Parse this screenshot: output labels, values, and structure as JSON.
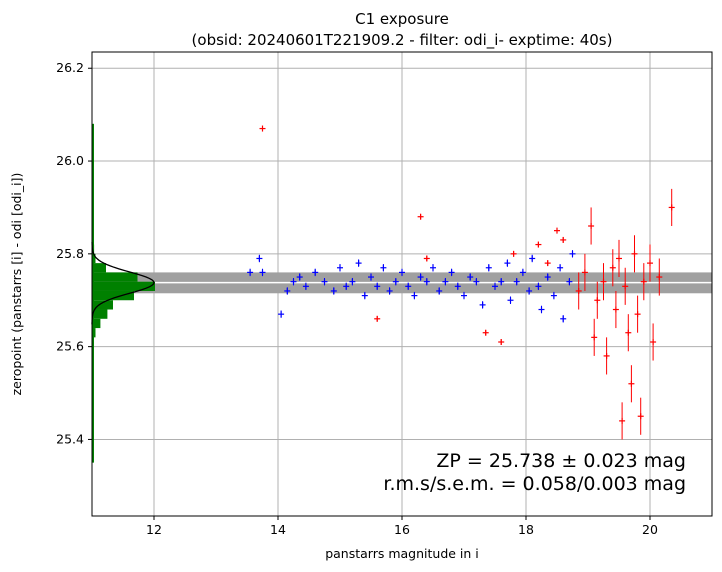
{
  "chart_data": {
    "type": "scatter",
    "title_line1": "C1 exposure",
    "title_line2": "(obsid: 20240601T221909.2 - filter: odi_i- exptime: 40s)",
    "xlabel": "panstarrs magnitude in i",
    "ylabel": "zeropoint (panstarrs [i] - odi [odi_i])",
    "xlim": [
      11.0,
      21.0
    ],
    "ylim": [
      25.235,
      26.235
    ],
    "xticks": [
      12,
      14,
      16,
      18,
      20
    ],
    "yticks": [
      25.4,
      25.6,
      25.8,
      26.0,
      26.2
    ],
    "xtick_labels": [
      "12",
      "14",
      "16",
      "18",
      "20"
    ],
    "ytick_labels": [
      "25.4",
      "25.6",
      "25.8",
      "26.0",
      "26.2"
    ],
    "grid": true,
    "zeropoint": 25.738,
    "zeropoint_band": [
      25.715,
      25.76
    ],
    "colors": {
      "used": "#0000ff",
      "rejected": "#ff0000",
      "histogram": "#008000",
      "band": "#a0a0a0",
      "gaussian": "#000000",
      "grid": "#b0b0b0"
    },
    "annotation_line1": "ZP = 25.738 ± 0.023 mag",
    "annotation_line2": "r.m.s/s.e.m. = 0.058/0.003 mag",
    "series": [
      {
        "values_blue": [
          [
            13.55,
            25.76
          ],
          [
            13.7,
            25.79
          ],
          [
            13.75,
            25.76
          ],
          [
            14.05,
            25.67
          ],
          [
            14.15,
            25.72
          ],
          [
            14.25,
            25.74
          ],
          [
            14.35,
            25.75
          ],
          [
            14.45,
            25.73
          ],
          [
            14.6,
            25.76
          ],
          [
            14.75,
            25.74
          ],
          [
            14.9,
            25.72
          ],
          [
            15.0,
            25.77
          ],
          [
            15.1,
            25.73
          ],
          [
            15.2,
            25.74
          ],
          [
            15.3,
            25.78
          ],
          [
            15.4,
            25.71
          ],
          [
            15.5,
            25.75
          ],
          [
            15.6,
            25.73
          ],
          [
            15.7,
            25.77
          ],
          [
            15.8,
            25.72
          ],
          [
            15.9,
            25.74
          ],
          [
            16.0,
            25.76
          ],
          [
            16.1,
            25.73
          ],
          [
            16.2,
            25.71
          ],
          [
            16.3,
            25.75
          ],
          [
            16.4,
            25.74
          ],
          [
            16.5,
            25.77
          ],
          [
            16.6,
            25.72
          ],
          [
            16.7,
            25.74
          ],
          [
            16.8,
            25.76
          ],
          [
            16.9,
            25.73
          ],
          [
            17.0,
            25.71
          ],
          [
            17.1,
            25.75
          ],
          [
            17.2,
            25.74
          ],
          [
            17.3,
            25.69
          ],
          [
            17.4,
            25.77
          ],
          [
            17.5,
            25.73
          ],
          [
            17.6,
            25.74
          ],
          [
            17.7,
            25.78
          ],
          [
            17.75,
            25.7
          ],
          [
            17.85,
            25.74
          ],
          [
            17.95,
            25.76
          ],
          [
            18.05,
            25.72
          ],
          [
            18.1,
            25.79
          ],
          [
            18.2,
            25.73
          ],
          [
            18.25,
            25.68
          ],
          [
            18.35,
            25.75
          ],
          [
            18.45,
            25.71
          ],
          [
            18.55,
            25.77
          ],
          [
            18.6,
            25.66
          ],
          [
            18.7,
            25.74
          ],
          [
            18.75,
            25.8
          ]
        ],
        "values_red": [
          [
            13.75,
            26.07
          ],
          [
            15.6,
            25.66
          ],
          [
            16.3,
            25.88
          ],
          [
            16.4,
            25.79
          ],
          [
            17.35,
            25.63
          ],
          [
            17.6,
            25.61
          ],
          [
            17.8,
            25.8
          ],
          [
            18.2,
            25.82
          ],
          [
            18.35,
            25.78
          ],
          [
            18.5,
            25.85
          ],
          [
            18.6,
            25.83
          ],
          [
            18.85,
            25.72
          ],
          [
            18.95,
            25.76
          ],
          [
            19.05,
            25.86
          ],
          [
            19.1,
            25.62
          ],
          [
            19.15,
            25.7
          ],
          [
            19.25,
            25.74
          ],
          [
            19.3,
            25.58
          ],
          [
            19.4,
            25.77
          ],
          [
            19.45,
            25.68
          ],
          [
            19.5,
            25.79
          ],
          [
            19.55,
            25.44
          ],
          [
            19.6,
            25.73
          ],
          [
            19.65,
            25.63
          ],
          [
            19.7,
            25.52
          ],
          [
            19.75,
            25.8
          ],
          [
            19.8,
            25.67
          ],
          [
            19.85,
            25.45
          ],
          [
            19.9,
            25.74
          ],
          [
            20.0,
            25.78
          ],
          [
            20.05,
            25.61
          ],
          [
            20.15,
            25.75
          ],
          [
            20.35,
            25.9
          ]
        ]
      }
    ],
    "histogram": {
      "bins": [
        [
          25.37,
          25.36,
          0.0
        ],
        [
          25.455,
          25.445,
          0.0
        ],
        [
          25.6,
          25.58,
          0.02
        ],
        [
          25.62,
          25.6,
          0.02
        ],
        [
          25.64,
          25.62,
          0.05
        ],
        [
          25.66,
          25.64,
          0.12
        ],
        [
          25.68,
          25.66,
          0.22
        ],
        [
          25.7,
          25.68,
          0.3
        ],
        [
          25.72,
          25.7,
          0.6
        ],
        [
          25.74,
          25.72,
          0.9
        ],
        [
          25.76,
          25.74,
          0.65
        ],
        [
          25.78,
          25.76,
          0.2
        ],
        [
          25.8,
          25.78,
          0.05
        ],
        [
          25.82,
          25.8,
          0.03
        ],
        [
          25.9,
          25.88,
          0.01
        ],
        [
          25.98,
          25.96,
          0.01
        ],
        [
          26.08,
          26.06,
          0.01
        ]
      ]
    }
  }
}
